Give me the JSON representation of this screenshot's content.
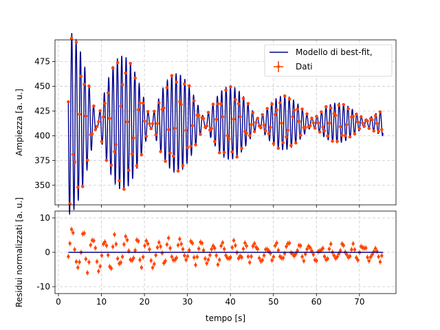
{
  "chart_data": [
    {
      "type": "line",
      "panel": "top",
      "xlabel": "",
      "ylabel": "Ampiezza [a. u.]",
      "xlim": [
        -0.8,
        78.5
      ],
      "ylim": [
        330,
        497
      ],
      "xticks": [
        0,
        10,
        20,
        30,
        40,
        50,
        60,
        70
      ],
      "yticks": [
        350,
        375,
        400,
        425,
        450,
        475
      ],
      "grid": true,
      "legend_position": "top-right",
      "legend": [
        "Modello di best-fit,",
        "Dati"
      ],
      "series": [
        {
          "name": "Modello di best-fit,",
          "kind": "line",
          "color": "#00008b",
          "x_range": [
            2.3,
            75.5
          ],
          "model": {
            "offset": 413,
            "freq1_hz": 0.949,
            "freq2_hz": 1.029,
            "amp1_start": 48,
            "amp1_decay_s": 46,
            "amp2_start": 45,
            "amp2_decay_s": 36,
            "phase1": 0.3,
            "phase2": -1.1
          }
        },
        {
          "name": "Dati",
          "kind": "points_with_errorbars",
          "color": "#ff4500",
          "x_range": [
            2.3,
            75.5
          ],
          "sample_interval_s": 0.1
        }
      ]
    },
    {
      "type": "scatter",
      "panel": "bottom",
      "xlabel": "tempo [s]",
      "ylabel": "Residui normalizzati [a. u.]",
      "xlim": [
        -0.8,
        78.5
      ],
      "ylim": [
        -12,
        12
      ],
      "xticks": [
        0,
        10,
        20,
        30,
        40,
        50,
        60,
        70
      ],
      "yticks": [
        -10,
        0,
        10
      ],
      "grid": true,
      "series": [
        {
          "name": "zero",
          "kind": "line",
          "color": "#00008b",
          "value": 0
        },
        {
          "name": "Residui",
          "kind": "points_with_errorbars",
          "color": "#ff4500",
          "typical_amplitude": [
            -10,
            7
          ]
        }
      ]
    }
  ]
}
